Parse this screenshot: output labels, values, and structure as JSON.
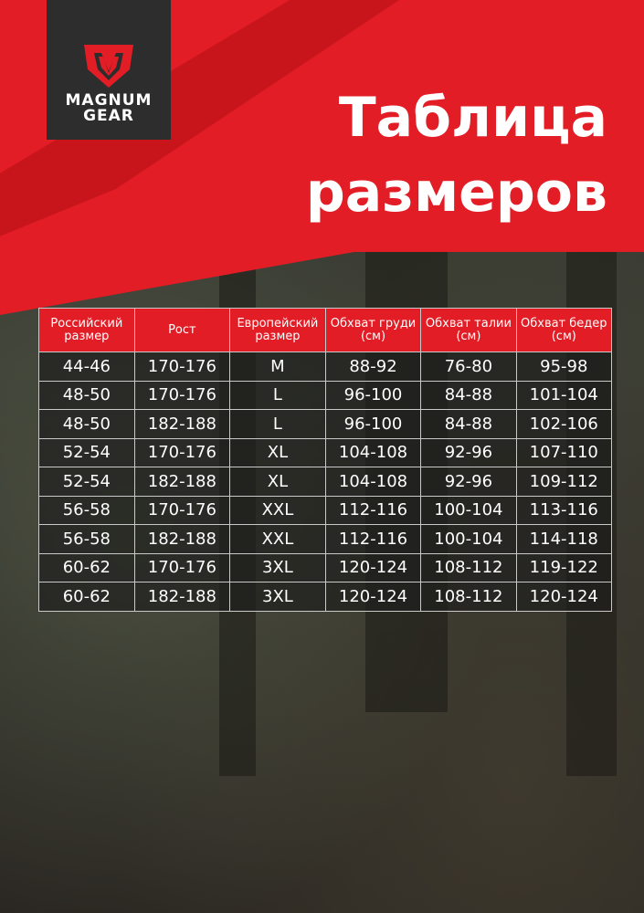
{
  "brand": {
    "logo_text": "MAGNUM GEAR",
    "colors": {
      "red": "#e21d25",
      "dark": "#2d2d2d"
    }
  },
  "title": {
    "line1": "Таблица",
    "line2": "размеров"
  },
  "table": {
    "headers": [
      "Российский размер",
      "Рост",
      "Европейский размер",
      "Обхват груди (см)",
      "Обхват талии (см)",
      "Обхват бедер (см)"
    ],
    "rows": [
      [
        "44-46",
        "170-176",
        "M",
        "88-92",
        "76-80",
        "95-98"
      ],
      [
        "48-50",
        "170-176",
        "L",
        "96-100",
        "84-88",
        "101-104"
      ],
      [
        "48-50",
        "182-188",
        "L",
        "96-100",
        "84-88",
        "102-106"
      ],
      [
        "52-54",
        "170-176",
        "XL",
        "104-108",
        "92-96",
        "107-110"
      ],
      [
        "52-54",
        "182-188",
        "XL",
        "104-108",
        "92-96",
        "109-112"
      ],
      [
        "56-58",
        "170-176",
        "XXL",
        "112-116",
        "100-104",
        "113-116"
      ],
      [
        "56-58",
        "182-188",
        "XXL",
        "112-116",
        "100-104",
        "114-118"
      ],
      [
        "60-62",
        "170-176",
        "3XL",
        "120-124",
        "108-112",
        "119-122"
      ],
      [
        "60-62",
        "182-188",
        "3XL",
        "120-124",
        "108-112",
        "120-124"
      ]
    ]
  }
}
